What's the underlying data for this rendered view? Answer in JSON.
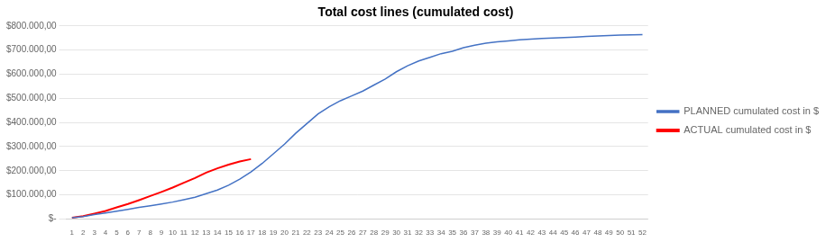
{
  "chart_data": {
    "type": "line",
    "title": "Total cost lines (cumulated cost)",
    "x": [
      1,
      2,
      3,
      4,
      5,
      6,
      7,
      8,
      9,
      10,
      11,
      12,
      13,
      14,
      15,
      16,
      17,
      18,
      19,
      20,
      21,
      22,
      23,
      24,
      25,
      26,
      27,
      28,
      29,
      30,
      31,
      32,
      33,
      34,
      35,
      36,
      37,
      38,
      39,
      40,
      41,
      42,
      43,
      44,
      45,
      46,
      47,
      48,
      49,
      50,
      51,
      52
    ],
    "xlim": [
      0.5,
      52.5
    ],
    "xticks": [
      1,
      2,
      3,
      4,
      5,
      6,
      7,
      8,
      9,
      10,
      11,
      12,
      13,
      14,
      15,
      16,
      17,
      18,
      19,
      20,
      21,
      22,
      23,
      24,
      25,
      26,
      27,
      28,
      29,
      30,
      31,
      32,
      33,
      34,
      35,
      36,
      37,
      38,
      39,
      40,
      41,
      42,
      43,
      44,
      45,
      46,
      47,
      48,
      49,
      50,
      51,
      52
    ],
    "ylim": [
      0,
      800000
    ],
    "yticks": [
      {
        "value": 0,
        "label": "$-"
      },
      {
        "value": 100000,
        "label": "$100.000,00"
      },
      {
        "value": 200000,
        "label": "$200.000,00"
      },
      {
        "value": 300000,
        "label": "$300.000,00"
      },
      {
        "value": 400000,
        "label": "$400.000,00"
      },
      {
        "value": 500000,
        "label": "$500.000,00"
      },
      {
        "value": 600000,
        "label": "$600.000,00"
      },
      {
        "value": 700000,
        "label": "$700.000,00"
      },
      {
        "value": 800000,
        "label": "$800.000,00"
      }
    ],
    "series": [
      {
        "name": "PLANNED cumulated cost in $",
        "color": "#4472C4",
        "values": [
          5000,
          10000,
          18000,
          25000,
          32000,
          40000,
          48000,
          55000,
          62000,
          70000,
          80000,
          90000,
          105000,
          120000,
          140000,
          165000,
          195000,
          230000,
          270000,
          310000,
          355000,
          395000,
          435000,
          465000,
          490000,
          510000,
          530000,
          555000,
          580000,
          610000,
          635000,
          655000,
          670000,
          685000,
          695000,
          710000,
          720000,
          728000,
          734000,
          738000,
          742000,
          745000,
          748000,
          750000,
          752000,
          754000,
          756000,
          758000,
          760000,
          762000,
          763000,
          764000
        ]
      },
      {
        "name": "ACTUAL cumulated cost in $",
        "color": "#FF0000",
        "values": [
          5000,
          12000,
          22000,
          33000,
          48000,
          62000,
          78000,
          95000,
          112000,
          130000,
          150000,
          170000,
          192000,
          210000,
          225000,
          238000,
          248000,
          null,
          null,
          null,
          null,
          null,
          null,
          null,
          null,
          null,
          null,
          null,
          null,
          null,
          null,
          null,
          null,
          null,
          null,
          null,
          null,
          null,
          null,
          null,
          null,
          null,
          null,
          null,
          null,
          null,
          null,
          null,
          null,
          null,
          null,
          null
        ]
      }
    ],
    "grid": true,
    "legend": "right"
  }
}
